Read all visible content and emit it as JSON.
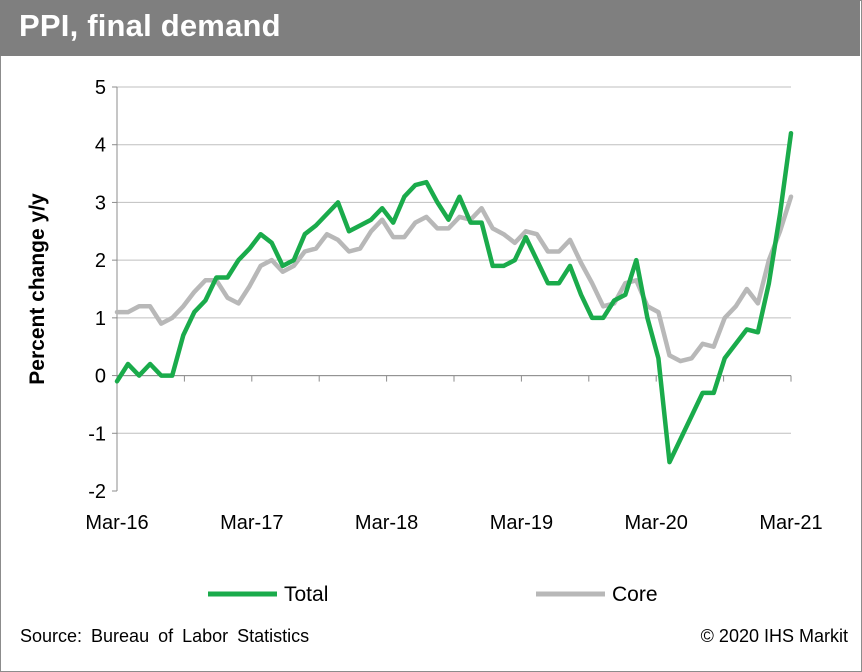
{
  "header": {
    "title": "PPI, final demand"
  },
  "footer": {
    "source": "Source: Bureau of Labor Statistics",
    "copyright": "© 2020 IHS Markit"
  },
  "chart_data": {
    "type": "line",
    "title": "PPI, final demand",
    "ylabel": "Percent change y/y",
    "xlabel": "",
    "ylim": [
      -2,
      5
    ],
    "yticks": [
      -2,
      -1,
      0,
      1,
      2,
      3,
      4,
      5
    ],
    "x_tick_labels": [
      "Mar-16",
      "Mar-17",
      "Mar-18",
      "Mar-19",
      "Mar-20",
      "Mar-21"
    ],
    "x_start": "Mar-16",
    "x_end": "Mar-21",
    "legend_position": "bottom",
    "grid": "horizontal",
    "series": [
      {
        "name": "Total",
        "color": "#1aab4b",
        "values": [
          -0.1,
          0.2,
          0.0,
          0.2,
          0.0,
          0.0,
          0.7,
          1.1,
          1.3,
          1.7,
          1.7,
          2.0,
          2.2,
          2.45,
          2.3,
          1.9,
          2.0,
          2.45,
          2.6,
          2.8,
          3.0,
          2.5,
          2.6,
          2.7,
          2.9,
          2.65,
          3.1,
          3.3,
          3.35,
          3.0,
          2.7,
          3.1,
          2.65,
          2.65,
          1.9,
          1.9,
          2.0,
          2.4,
          2.0,
          1.6,
          1.6,
          1.9,
          1.4,
          1.0,
          1.0,
          1.3,
          1.4,
          2.0,
          1.0,
          0.3,
          -1.5,
          -1.1,
          -0.7,
          -0.3,
          -0.3,
          0.3,
          0.55,
          0.8,
          0.75,
          1.6,
          2.8,
          4.2
        ]
      },
      {
        "name": "Core",
        "color": "#b8b8b8",
        "values": [
          1.1,
          1.1,
          1.2,
          1.2,
          0.9,
          1.0,
          1.2,
          1.45,
          1.65,
          1.65,
          1.35,
          1.25,
          1.55,
          1.9,
          2.0,
          1.8,
          1.9,
          2.15,
          2.2,
          2.45,
          2.35,
          2.15,
          2.2,
          2.5,
          2.7,
          2.4,
          2.4,
          2.65,
          2.75,
          2.55,
          2.55,
          2.75,
          2.7,
          2.9,
          2.55,
          2.45,
          2.3,
          2.5,
          2.45,
          2.15,
          2.15,
          2.35,
          1.95,
          1.6,
          1.2,
          1.25,
          1.6,
          1.65,
          1.2,
          1.1,
          0.35,
          0.25,
          0.3,
          0.55,
          0.5,
          1.0,
          1.2,
          1.5,
          1.25,
          2.0,
          2.5,
          3.1
        ]
      }
    ]
  }
}
